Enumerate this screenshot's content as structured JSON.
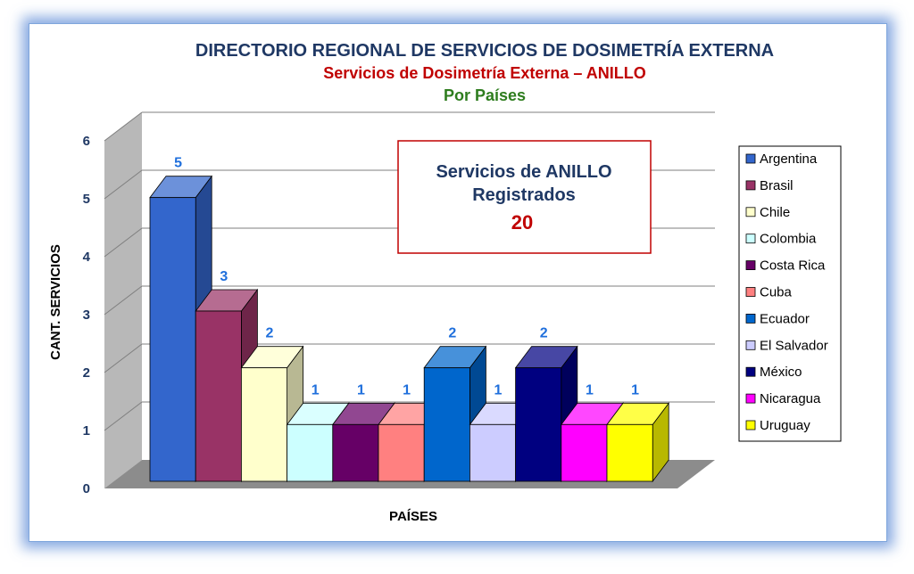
{
  "chart_data": {
    "type": "bar",
    "title": "DIRECTORIO REGIONAL DE SERVICIOS DE DOSIMETRÍA EXTERNA",
    "subtitle": "Servicios de Dosimetría Externa – ANILLO",
    "subtitle2": "Por Países",
    "xlabel": "PAÍSES",
    "ylabel": "CANT. SERVICIOS",
    "ylim": [
      0,
      6
    ],
    "yticks": [
      "0",
      "1",
      "2",
      "3",
      "4",
      "5",
      "6"
    ],
    "grid": true,
    "legend_position": "right",
    "categories": [
      "Argentina",
      "Brasil",
      "Chile",
      "Colombia",
      "Costa Rica",
      "Cuba",
      "Ecuador",
      "El Salvador",
      "México",
      "Nicaragua",
      "Uruguay"
    ],
    "values": [
      5,
      3,
      2,
      1,
      1,
      1,
      2,
      1,
      2,
      1,
      1
    ],
    "colors": [
      "#3366cc",
      "#993366",
      "#ffffcc",
      "#ccffff",
      "#660066",
      "#ff8080",
      "#0066cc",
      "#ccccff",
      "#000080",
      "#ff00ff",
      "#ffff00"
    ],
    "annotation": {
      "line1": "Servicios de ANILLO",
      "line2": "Registrados",
      "total": "20"
    }
  }
}
